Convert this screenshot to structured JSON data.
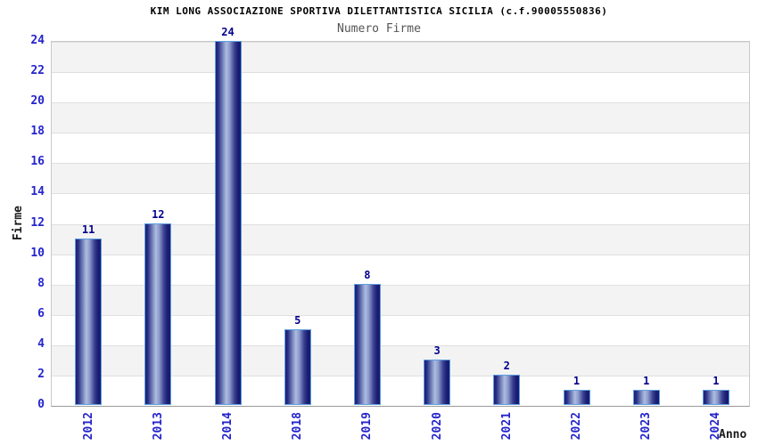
{
  "chart_data": {
    "type": "bar",
    "title": "KIM LONG ASSOCIAZIONE SPORTIVA DILETTANTISTICA SICILIA (c.f.90005550836)",
    "subtitle": "Numero Firme",
    "categories": [
      "2012",
      "2013",
      "2014",
      "2018",
      "2019",
      "2020",
      "2021",
      "2022",
      "2023",
      "2024"
    ],
    "values": [
      11,
      12,
      24,
      5,
      8,
      3,
      2,
      1,
      1,
      1
    ],
    "xlabel": "Anno",
    "ylabel": "Firme",
    "ylim": [
      0,
      24
    ],
    "ytick_step": 2,
    "yticks": [
      0,
      2,
      4,
      6,
      8,
      10,
      12,
      14,
      16,
      18,
      20,
      22,
      24
    ],
    "grid": "horizontal-alternating-bands",
    "legend": "none",
    "value_labels_shown": true,
    "colors": {
      "tick_label": "#2424cc",
      "value_label": "#00008b",
      "bar_border": "#5d9fdf",
      "bar_dark": "#191c72",
      "bar_light": "#aebcdf",
      "band_gray": "#f3f3f3",
      "band_white": "#ffffff",
      "grid_line": "#e0e0e0",
      "plot_border": "#c9c9c9",
      "axis_line": "#999999",
      "title": "#000000",
      "subtitle": "#555555",
      "axis_title": "#1a1a1a"
    }
  }
}
